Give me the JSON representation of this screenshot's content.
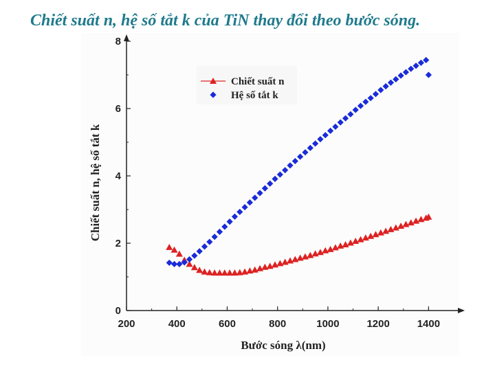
{
  "slide": {
    "title": "Chiết suất n, hệ số tắt k của TiN thay đổi theo bước sóng."
  },
  "chart_data": {
    "type": "scatter",
    "title": "",
    "xlabel": "Bước sóng λ(nm)",
    "ylabel": "Chiết suất n, hệ số tắt k",
    "xlim": [
      200,
      1500
    ],
    "ylim": [
      0,
      8
    ],
    "xticks": [
      200,
      400,
      600,
      800,
      1000,
      1200,
      1400
    ],
    "yticks": [
      0,
      2,
      4,
      6,
      8
    ],
    "legend_position": "top-left",
    "colors": {
      "n": "#dd2222",
      "k": "#1a2bd8"
    },
    "series": [
      {
        "name": "Chiết suất n",
        "marker": "triangle",
        "x": [
          370,
          390,
          410,
          430,
          450,
          470,
          490,
          510,
          530,
          550,
          570,
          590,
          610,
          630,
          650,
          670,
          690,
          710,
          730,
          750,
          770,
          790,
          810,
          830,
          850,
          870,
          890,
          910,
          930,
          950,
          970,
          990,
          1010,
          1030,
          1050,
          1070,
          1090,
          1110,
          1130,
          1150,
          1170,
          1190,
          1210,
          1230,
          1250,
          1270,
          1290,
          1310,
          1330,
          1350,
          1370,
          1390,
          1400
        ],
        "values": [
          1.88,
          1.8,
          1.68,
          1.5,
          1.38,
          1.28,
          1.2,
          1.15,
          1.13,
          1.12,
          1.12,
          1.12,
          1.12,
          1.12,
          1.13,
          1.15,
          1.18,
          1.21,
          1.25,
          1.29,
          1.32,
          1.36,
          1.4,
          1.44,
          1.48,
          1.52,
          1.56,
          1.6,
          1.64,
          1.69,
          1.73,
          1.78,
          1.82,
          1.87,
          1.92,
          1.96,
          2.01,
          2.06,
          2.11,
          2.16,
          2.21,
          2.26,
          2.31,
          2.36,
          2.41,
          2.46,
          2.51,
          2.56,
          2.61,
          2.66,
          2.71,
          2.75,
          2.78
        ]
      },
      {
        "name": "Hệ số tắt k",
        "marker": "diamond",
        "x": [
          370,
          390,
          410,
          430,
          450,
          470,
          490,
          510,
          530,
          550,
          570,
          590,
          610,
          630,
          650,
          670,
          690,
          710,
          730,
          750,
          770,
          790,
          810,
          830,
          850,
          870,
          890,
          910,
          930,
          950,
          970,
          990,
          1010,
          1030,
          1050,
          1070,
          1090,
          1110,
          1130,
          1150,
          1170,
          1190,
          1210,
          1230,
          1250,
          1270,
          1290,
          1310,
          1330,
          1350,
          1370,
          1390,
          1400
        ],
        "values": [
          1.42,
          1.38,
          1.38,
          1.43,
          1.52,
          1.63,
          1.76,
          1.9,
          2.04,
          2.19,
          2.34,
          2.49,
          2.64,
          2.79,
          2.93,
          3.07,
          3.21,
          3.35,
          3.49,
          3.63,
          3.77,
          3.91,
          4.04,
          4.17,
          4.31,
          4.44,
          4.57,
          4.7,
          4.83,
          4.96,
          5.09,
          5.21,
          5.34,
          5.46,
          5.59,
          5.71,
          5.83,
          5.96,
          6.08,
          6.2,
          6.31,
          6.43,
          6.55,
          6.66,
          6.77,
          6.87,
          6.98,
          7.08,
          7.18,
          7.27,
          7.36,
          7.44,
          7.0
        ]
      }
    ]
  }
}
